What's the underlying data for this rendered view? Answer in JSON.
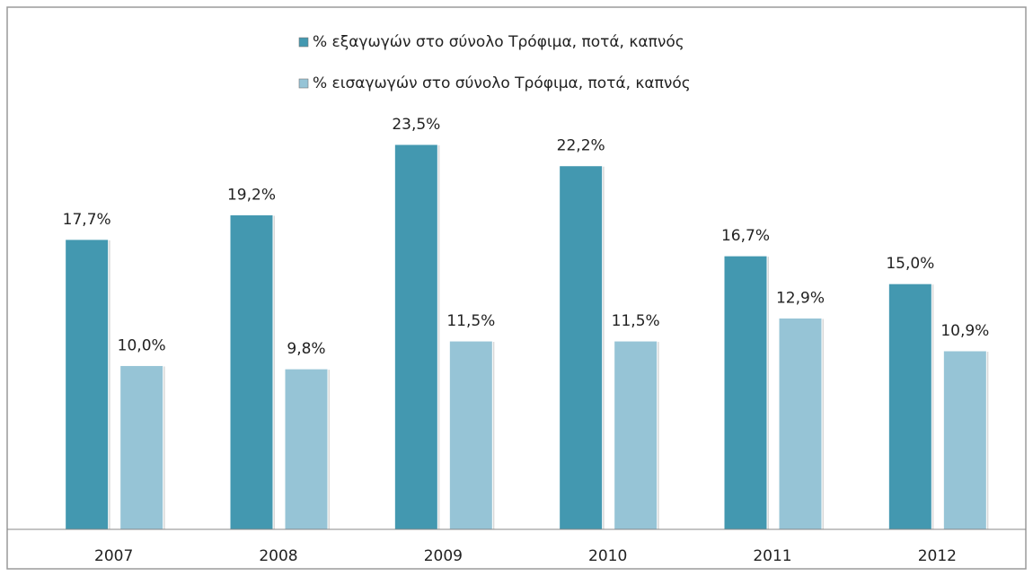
{
  "chart_data": {
    "type": "bar",
    "categories": [
      "2007",
      "2008",
      "2009",
      "2010",
      "2011",
      "2012"
    ],
    "series": [
      {
        "name": "% εξαγωγών στο σύνολο Τρόφιμα, ποτά, καπνός",
        "color": "#4398b0",
        "values": [
          17.7,
          19.2,
          23.5,
          22.2,
          16.7,
          15.0
        ],
        "value_labels": [
          "17,7%",
          "19,2%",
          "23,5%",
          "22,2%",
          "16,7%",
          "15,0%"
        ]
      },
      {
        "name": "% εισαγωγών στο σύνολο Τρόφιμα, ποτά, καπνός",
        "color": "#96c4d6",
        "values": [
          10.0,
          9.8,
          11.5,
          11.5,
          12.9,
          10.9
        ],
        "value_labels": [
          "10,0%",
          "9,8%",
          "11,5%",
          "11,5%",
          "12,9%",
          "10,9%"
        ]
      }
    ],
    "legend": "top"
  }
}
